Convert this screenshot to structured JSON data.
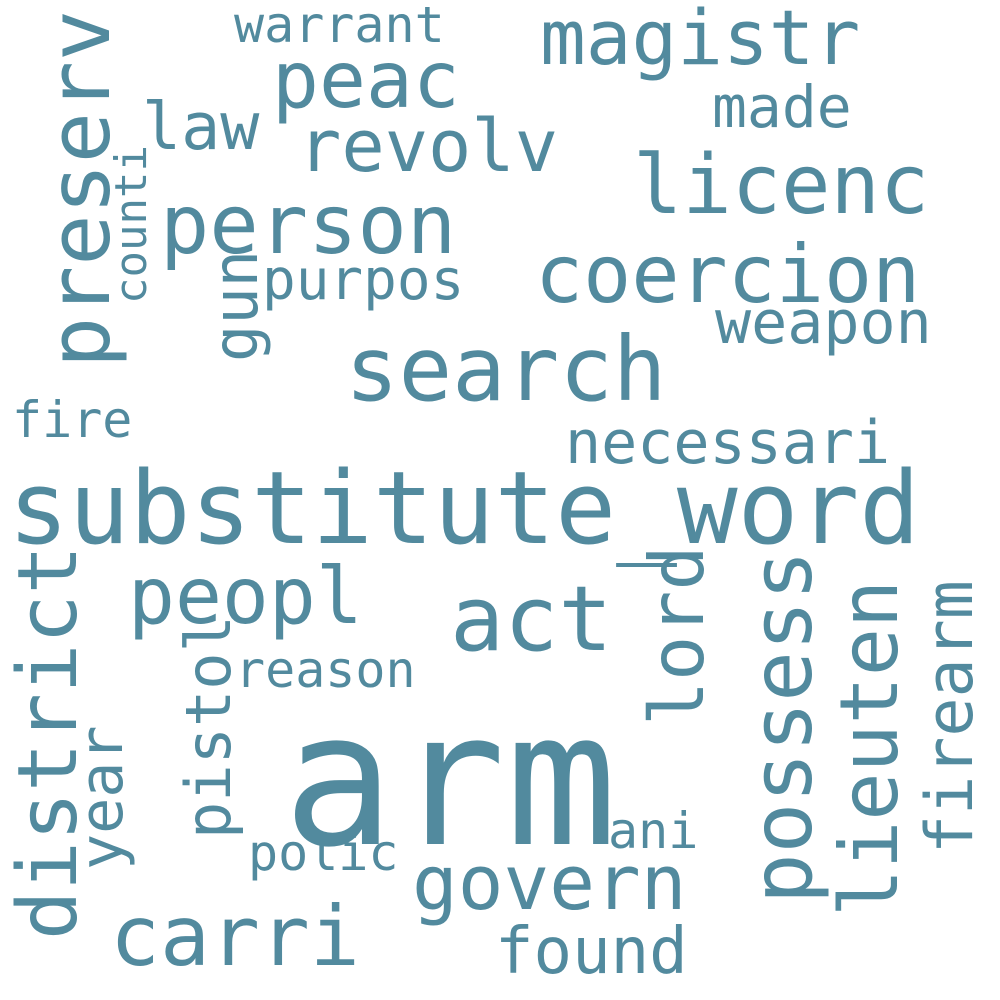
{
  "colors": {
    "word": "#528a9e",
    "background": "#ffffff"
  },
  "words": [
    {
      "id": "arm",
      "text": "arm"
    },
    {
      "id": "substitute_word",
      "text": "substitute_word"
    },
    {
      "id": "search",
      "text": "search"
    },
    {
      "id": "person",
      "text": "person"
    },
    {
      "id": "coercion",
      "text": "coercion"
    },
    {
      "id": "licenc",
      "text": "licenc"
    },
    {
      "id": "magistr",
      "text": "magistr"
    },
    {
      "id": "peac",
      "text": "peac"
    },
    {
      "id": "revolv",
      "text": "revolv"
    },
    {
      "id": "preserv",
      "text": "preserv"
    },
    {
      "id": "act",
      "text": "act"
    },
    {
      "id": "peopl",
      "text": "peopl"
    },
    {
      "id": "carri",
      "text": "carri"
    },
    {
      "id": "govern",
      "text": "govern"
    },
    {
      "id": "possess",
      "text": "possess"
    },
    {
      "id": "district",
      "text": "district"
    },
    {
      "id": "lieuten",
      "text": "lieuten"
    },
    {
      "id": "lord",
      "text": "lord"
    },
    {
      "id": "firearm",
      "text": "firearm"
    },
    {
      "id": "pistol",
      "text": "pistol"
    },
    {
      "id": "year",
      "text": "year"
    },
    {
      "id": "gun",
      "text": "gun"
    },
    {
      "id": "necessari",
      "text": "necessari"
    },
    {
      "id": "weapon",
      "text": "weapon"
    },
    {
      "id": "purpos",
      "text": "purpos"
    },
    {
      "id": "found",
      "text": "found"
    },
    {
      "id": "made",
      "text": "made"
    },
    {
      "id": "law",
      "text": "law"
    },
    {
      "id": "warrant",
      "text": "warrant"
    },
    {
      "id": "counti",
      "text": "counti"
    },
    {
      "id": "reason",
      "text": "reason"
    },
    {
      "id": "fire",
      "text": "fire"
    },
    {
      "id": "polic",
      "text": "polic"
    },
    {
      "id": "ani",
      "text": "ani"
    }
  ]
}
